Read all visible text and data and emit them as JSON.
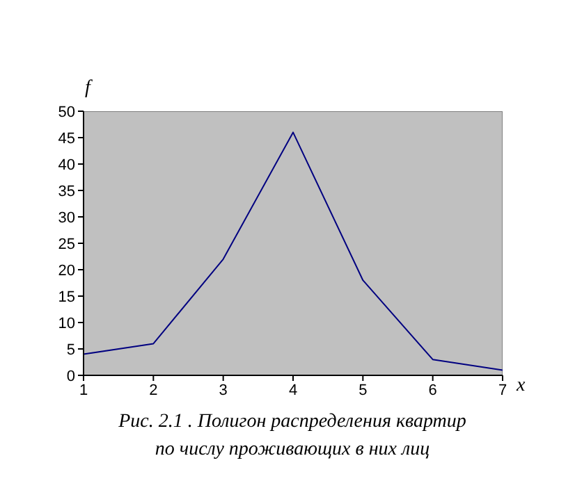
{
  "chart_data": {
    "type": "line",
    "xlabel": "x",
    "ylabel": "f",
    "x": [
      1,
      2,
      3,
      4,
      5,
      6,
      7
    ],
    "series": [
      {
        "color": "#000080",
        "values": [
          4,
          6,
          22,
          46,
          18,
          3,
          1
        ]
      }
    ],
    "xlim": [
      1,
      7
    ],
    "xticks": [
      1,
      2,
      3,
      4,
      5,
      6,
      7
    ],
    "ylim": [
      0,
      50
    ],
    "yticks": [
      0,
      5,
      10,
      15,
      20,
      25,
      30,
      35,
      40,
      45,
      50
    ],
    "grid": false,
    "legend": false,
    "marker": "none",
    "line_style": "solid",
    "annotations": [
      "Рис. 2.1 . Полигон распределения квартир по числу проживающих в них лиц"
    ]
  }
}
